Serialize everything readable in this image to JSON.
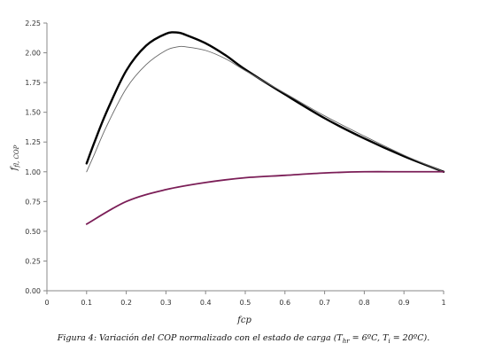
{
  "chart_data": {
    "type": "line",
    "ylabel": "f",
    "ylabel_sub": "fl, COP",
    "xlabel": "fcp",
    "xlim": [
      0,
      1
    ],
    "ylim": [
      0,
      2.25
    ],
    "xticks": [
      "0",
      "0.1",
      "0.2",
      "0.3",
      "0.4",
      "0.5",
      "0.6",
      "0.7",
      "0.8",
      "0.9",
      "1"
    ],
    "yticks": [
      "0.00",
      "0.25",
      "0.50",
      "0.75",
      "1.00",
      "1.25",
      "1.50",
      "1.75",
      "2.00",
      "2.25"
    ],
    "grid": false,
    "legend": "none",
    "series": [
      {
        "color": "#000000",
        "x": [
          0.1,
          0.12,
          0.15,
          0.2,
          0.25,
          0.3,
          0.33,
          0.35,
          0.4,
          0.45,
          0.5,
          0.6,
          0.7,
          0.8,
          0.9,
          1.0
        ],
        "y": [
          1.07,
          1.25,
          1.5,
          1.85,
          2.06,
          2.16,
          2.17,
          2.15,
          2.08,
          1.98,
          1.86,
          1.65,
          1.45,
          1.28,
          1.13,
          1.0
        ]
      },
      {
        "color": "#666666",
        "x": [
          0.1,
          0.12,
          0.15,
          0.2,
          0.25,
          0.3,
          0.33,
          0.35,
          0.4,
          0.45,
          0.5,
          0.6,
          0.7,
          0.8,
          0.9,
          1.0
        ],
        "y": [
          1.0,
          1.15,
          1.38,
          1.7,
          1.9,
          2.02,
          2.05,
          2.05,
          2.02,
          1.95,
          1.85,
          1.66,
          1.47,
          1.3,
          1.14,
          1.0
        ]
      },
      {
        "color": "#7b1e57",
        "x": [
          0.1,
          0.2,
          0.3,
          0.4,
          0.5,
          0.6,
          0.7,
          0.8,
          0.9,
          1.0
        ],
        "y": [
          0.56,
          0.75,
          0.85,
          0.91,
          0.95,
          0.97,
          0.99,
          1.0,
          1.0,
          1.0
        ]
      }
    ]
  },
  "caption": {
    "prefix": "Figura 4: Variación del COP normalizado con el estado de carga (T",
    "sub1": "hr",
    "mid": " = 6ºC, T",
    "sub2": "i",
    "suffix": " = 20ºC)."
  }
}
